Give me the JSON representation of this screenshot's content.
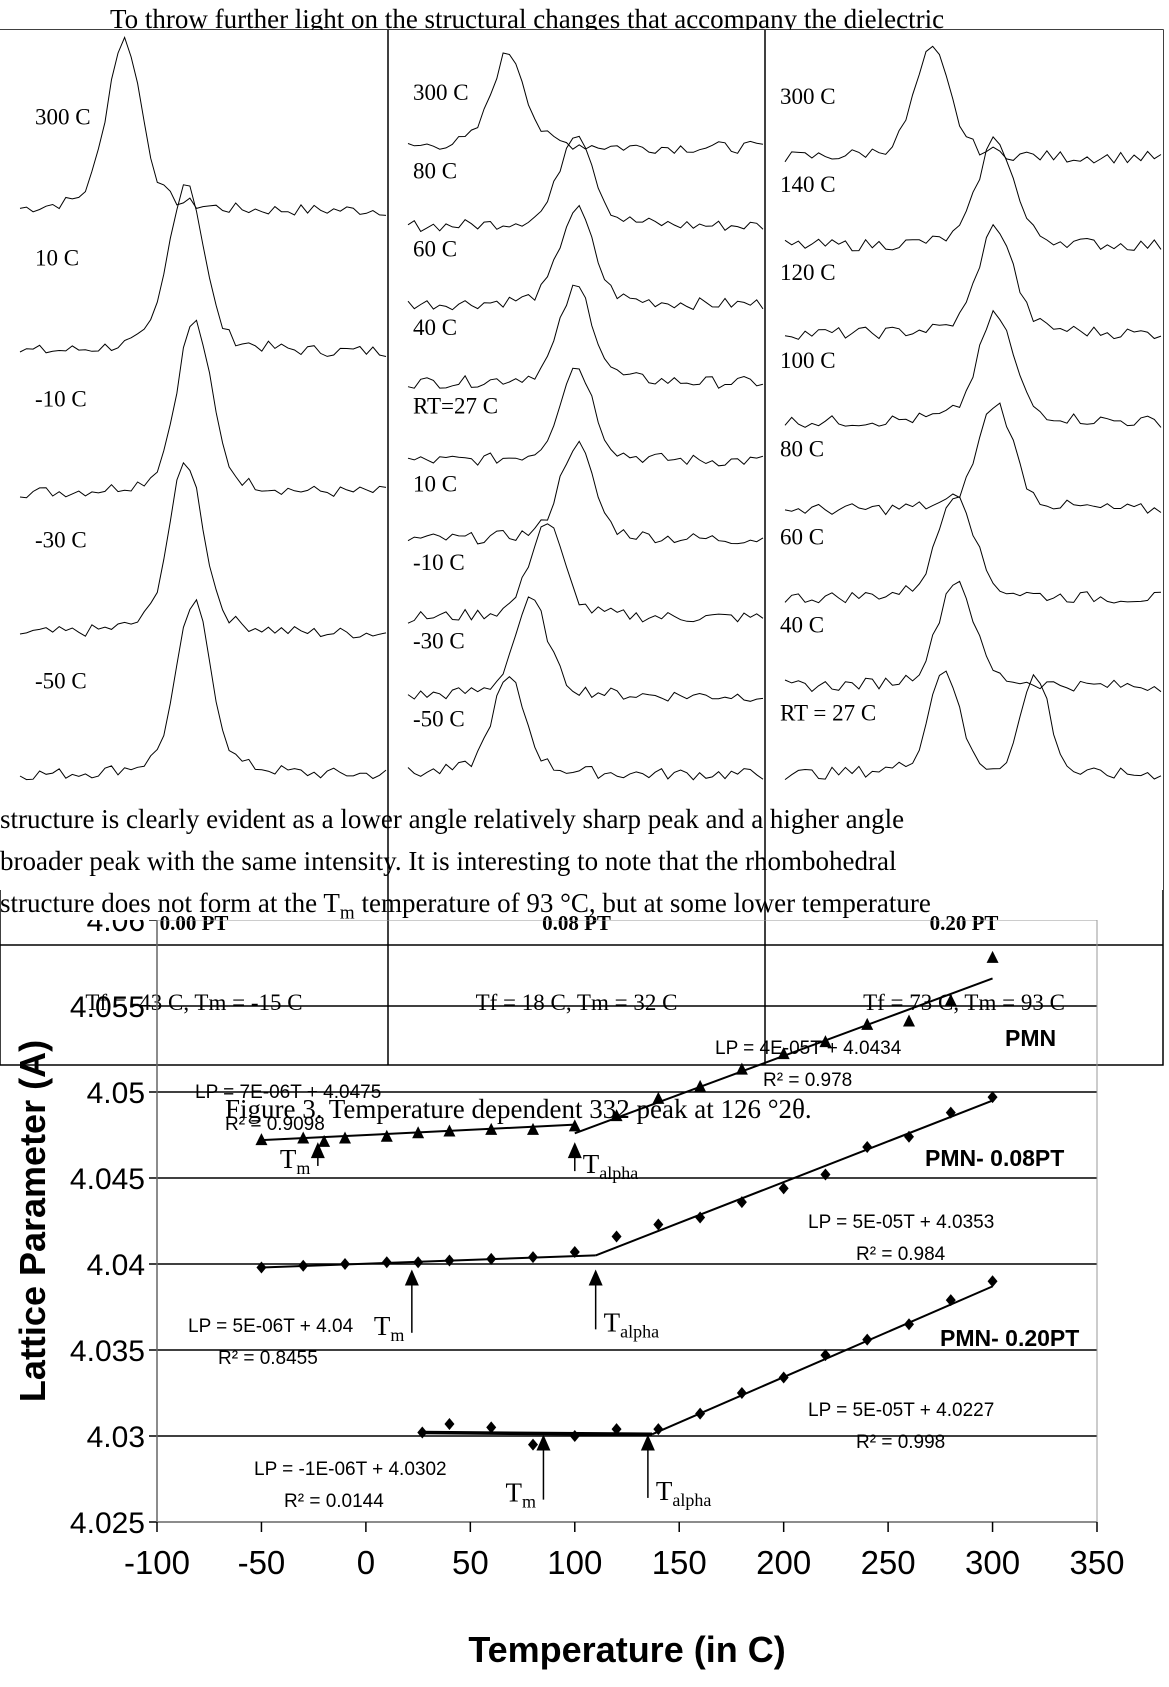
{
  "page": {
    "text_top": "To throw further light on the structural changes that accompany the dielectric",
    "text_line_2": "structure is clearly evident as a lower angle relatively sharp peak and a higher angle",
    "text_line_3": "broader peak with the same intensity. It is interesting to note that the rhombohedral",
    "text_line_4a": "structure does not form at the T",
    "text_line_4_sub": "m",
    "text_line_4b": " temperature of 93 °C, but at some lower temperature",
    "caption": "Figure 3.  Temperature dependent 332 peak at 126 °2θ."
  },
  "chart_data": [
    {
      "type": "line",
      "title": "0.00 PT",
      "footer": "Tf = -43 C,  Tm = -15 C",
      "series": [
        {
          "name": "300 C",
          "peak_position": 0.32
        },
        {
          "name": "10 C",
          "peak_position": 0.48
        },
        {
          "name": "-10 C",
          "peak_position": 0.5
        },
        {
          "name": "-30 C",
          "peak_position": 0.48
        },
        {
          "name": "-50 C",
          "peak_position": 0.5
        }
      ]
    },
    {
      "type": "line",
      "title": "0.08 PT",
      "footer": "Tf = 18 C,  Tm = 32 C",
      "series": [
        {
          "name": "300 C",
          "peak_position": 0.32
        },
        {
          "name": "80 C",
          "peak_position": 0.5
        },
        {
          "name": "60 C",
          "peak_position": 0.5
        },
        {
          "name": "40 C",
          "peak_position": 0.5
        },
        {
          "name": "RT=27 C",
          "peak_position": 0.5
        },
        {
          "name": "10 C",
          "peak_position": 0.5
        },
        {
          "name": "-10 C",
          "peak_position": 0.42
        },
        {
          "name": "-30 C",
          "peak_position": 0.38
        },
        {
          "name": "-50 C",
          "peak_position": 0.32
        }
      ]
    },
    {
      "type": "line",
      "title": "0.20 PT",
      "footer": "Tf = 73 C,  Tm = 93 C",
      "series": [
        {
          "name": "300 C",
          "peak_position": 0.42
        },
        {
          "name": "140 C",
          "peak_position": 0.58
        },
        {
          "name": "120 C",
          "peak_position": 0.58
        },
        {
          "name": "100 C",
          "peak_position": 0.58
        },
        {
          "name": "80 C",
          "peak_position": 0.58
        },
        {
          "name": "60 C",
          "peak_position": 0.48
        },
        {
          "name": "40 C",
          "peak_position": 0.48
        },
        {
          "name": "RT = 27 C",
          "peak_position": 0.45
        }
      ]
    },
    {
      "type": "scatter",
      "xlabel": "Temperature (in C)",
      "ylabel": "Lattice Parameter (A)",
      "xlim": [
        -100,
        350
      ],
      "ylim": [
        4.025,
        4.06
      ],
      "xticks": [
        "-100",
        "-50",
        "0",
        "50",
        "100",
        "150",
        "200",
        "250",
        "300",
        "350"
      ],
      "yticks": [
        "4.025",
        "4.03",
        "4.035",
        "4.04",
        "4.045",
        "4.05",
        "4.055",
        "4.06"
      ],
      "grid": true,
      "series": [
        {
          "name": "PMN",
          "marker": "triangle",
          "points": [
            [
              -50,
              4.0472
            ],
            [
              -30,
              4.0473
            ],
            [
              -20,
              4.0471
            ],
            [
              -10,
              4.0473
            ],
            [
              10,
              4.0474
            ],
            [
              25,
              4.0476
            ],
            [
              40,
              4.0477
            ],
            [
              60,
              4.0478
            ],
            [
              80,
              4.0478
            ],
            [
              100,
              4.048
            ],
            [
              120,
              4.0486
            ],
            [
              140,
              4.0496
            ],
            [
              160,
              4.0503
            ],
            [
              180,
              4.0513
            ],
            [
              200,
              4.0522
            ],
            [
              220,
              4.0529
            ],
            [
              240,
              4.0539
            ],
            [
              260,
              4.0541
            ],
            [
              280,
              4.0553
            ],
            [
              300,
              4.0578
            ]
          ],
          "fits": [
            {
              "label": "LP = 7E-06T + 4.0475",
              "r2": "R² = 0.9098",
              "x": [
                -50,
                100
              ],
              "y": [
                4.0472,
                4.0481
              ]
            },
            {
              "label": "LP = 4E-05T + 4.0434",
              "r2": "R² = 0.978",
              "x": [
                100,
                300
              ],
              "y": [
                4.0476,
                4.0566
              ]
            }
          ],
          "markers": [
            {
              "label": "T",
              "sub": "m",
              "x": -23
            },
            {
              "label": "T",
              "sub": "alpha",
              "x": 100
            }
          ]
        },
        {
          "name": "PMN- 0.08PT",
          "marker": "diamond",
          "points": [
            [
              -50,
              4.0398
            ],
            [
              -30,
              4.0399
            ],
            [
              -10,
              4.04
            ],
            [
              10,
              4.0401
            ],
            [
              25,
              4.0401
            ],
            [
              40,
              4.0402
            ],
            [
              60,
              4.0403
            ],
            [
              80,
              4.0404
            ],
            [
              100,
              4.0407
            ],
            [
              120,
              4.0416
            ],
            [
              140,
              4.0423
            ],
            [
              160,
              4.0427
            ],
            [
              180,
              4.0436
            ],
            [
              200,
              4.0444
            ],
            [
              220,
              4.0452
            ],
            [
              240,
              4.0468
            ],
            [
              260,
              4.0474
            ],
            [
              280,
              4.0488
            ],
            [
              300,
              4.0497
            ]
          ],
          "fits": [
            {
              "label": "LP = 5E-06T + 4.04",
              "r2": "R² = 0.8455",
              "x": [
                -50,
                110
              ],
              "y": [
                4.0398,
                4.0405
              ]
            },
            {
              "label": "LP = 5E-05T + 4.0353",
              "r2": "R² = 0.984",
              "x": [
                110,
                300
              ],
              "y": [
                4.0405,
                4.0495
              ]
            }
          ],
          "markers": [
            {
              "label": "T",
              "sub": "m",
              "x": 22
            },
            {
              "label": "T",
              "sub": "alpha",
              "x": 110
            }
          ]
        },
        {
          "name": "PMN- 0.20PT",
          "marker": "diamond",
          "points": [
            [
              27,
              4.0302
            ],
            [
              40,
              4.0307
            ],
            [
              60,
              4.0305
            ],
            [
              80,
              4.0295
            ],
            [
              100,
              4.03
            ],
            [
              120,
              4.0304
            ],
            [
              140,
              4.0304
            ],
            [
              160,
              4.0313
            ],
            [
              180,
              4.0325
            ],
            [
              200,
              4.0334
            ],
            [
              220,
              4.0347
            ],
            [
              240,
              4.0356
            ],
            [
              260,
              4.0365
            ],
            [
              280,
              4.0379
            ],
            [
              300,
              4.039
            ]
          ],
          "fits": [
            {
              "label": "LP = -1E-06T + 4.0302",
              "r2": "R² = 0.0144",
              "x": [
                27,
                137
              ],
              "y": [
                4.0302,
                4.0301
              ]
            },
            {
              "label": "LP = 5E-05T + 4.0227",
              "r2": "R² = 0.998",
              "x": [
                137,
                300
              ],
              "y": [
                4.0301,
                4.0387
              ]
            }
          ],
          "markers": [
            {
              "label": "T",
              "sub": "m",
              "x": 85
            },
            {
              "label": "T",
              "sub": "alpha",
              "x": 135
            }
          ]
        }
      ]
    }
  ]
}
